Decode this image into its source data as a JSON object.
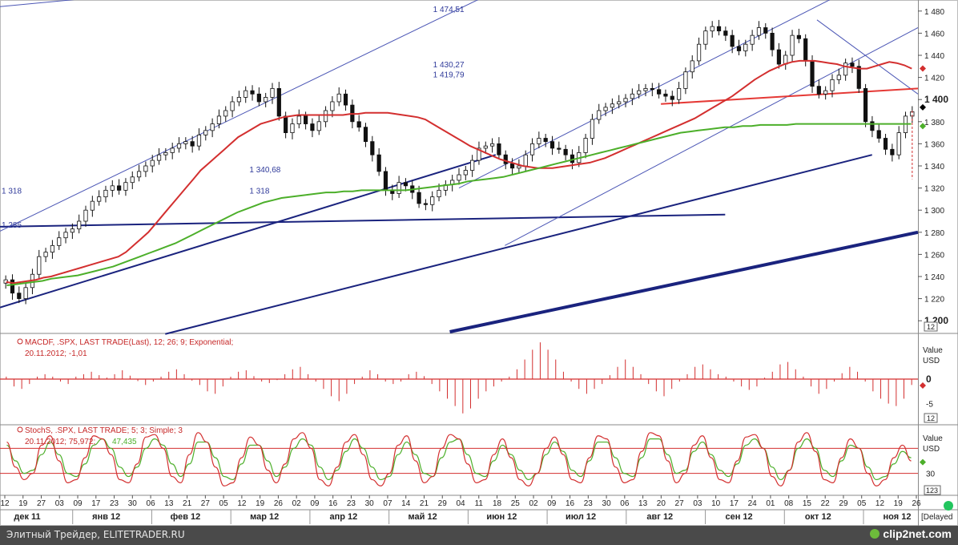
{
  "chart_data": {
    "type": "line",
    "price_panel": {
      "ylim": [
        1190,
        1490
      ],
      "y_ticks": [
        "1 480",
        "1 460",
        "1 440",
        "1 420",
        "1 400",
        "1 380",
        "1 360",
        "1 340",
        "1 320",
        "1 300",
        "1 280",
        "1 260",
        "1 240",
        "1 220",
        "1 200"
      ],
      "bold_ticks": [
        "1 400",
        "1 200"
      ],
      "right_badge": "12",
      "annotations": [
        {
          "text": "1 474,51",
          "x": 47,
          "y": 1482
        },
        {
          "text": "1 430,27",
          "x": 47,
          "y": 1432
        },
        {
          "text": "1 419,79",
          "x": 47,
          "y": 1423
        },
        {
          "text": "1 340,68",
          "x": 27,
          "y": 1337
        },
        {
          "text": "1 318",
          "x": 27,
          "y": 1318
        },
        {
          "text": "1 318",
          "x": 0,
          "y": 1318
        },
        {
          "text": "1 285",
          "x": 0,
          "y": 1287
        }
      ],
      "close": [
        1237,
        1225,
        1220,
        1230,
        1242,
        1258,
        1262,
        1268,
        1275,
        1280,
        1283,
        1290,
        1300,
        1308,
        1312,
        1318,
        1322,
        1318,
        1325,
        1330,
        1335,
        1340,
        1345,
        1350,
        1352,
        1356,
        1360,
        1362,
        1358,
        1368,
        1372,
        1378,
        1385,
        1390,
        1398,
        1402,
        1408,
        1405,
        1398,
        1402,
        1410,
        1385,
        1370,
        1378,
        1385,
        1378,
        1372,
        1380,
        1390,
        1398,
        1405,
        1395,
        1380,
        1375,
        1362,
        1350,
        1335,
        1318,
        1315,
        1325,
        1322,
        1316,
        1306,
        1305,
        1312,
        1318,
        1323,
        1327,
        1332,
        1336,
        1345,
        1356,
        1358,
        1360,
        1350,
        1342,
        1338,
        1340,
        1350,
        1360,
        1365,
        1362,
        1356,
        1355,
        1350,
        1343,
        1352,
        1365,
        1382,
        1390,
        1393,
        1396,
        1398,
        1401,
        1405,
        1408,
        1410,
        1409,
        1405,
        1403,
        1400,
        1410,
        1425,
        1435,
        1450,
        1462,
        1466,
        1462,
        1458,
        1448,
        1444,
        1450,
        1458,
        1465,
        1460,
        1445,
        1432,
        1440,
        1458,
        1455,
        1435,
        1412,
        1405,
        1408,
        1418,
        1422,
        1433,
        1430,
        1410,
        1380,
        1372,
        1365,
        1355,
        1350,
        1370,
        1385,
        1389
      ],
      "ma_red": [
        1235,
        1234,
        1235,
        1236,
        1237,
        1239,
        1240,
        1242,
        1244,
        1246,
        1248,
        1250,
        1252,
        1254,
        1256,
        1258,
        1262,
        1268,
        1274,
        1280,
        1288,
        1296,
        1304,
        1312,
        1320,
        1328,
        1336,
        1342,
        1348,
        1354,
        1360,
        1366,
        1370,
        1374,
        1378,
        1380,
        1382,
        1384,
        1385,
        1386,
        1386,
        1386,
        1386,
        1386,
        1386,
        1386,
        1387,
        1387,
        1388,
        1388,
        1388,
        1388,
        1387,
        1386,
        1385,
        1384,
        1382,
        1378,
        1374,
        1370,
        1366,
        1362,
        1358,
        1355,
        1352,
        1349,
        1346,
        1344,
        1342,
        1340,
        1339,
        1338,
        1338,
        1338,
        1339,
        1340,
        1341,
        1342,
        1343,
        1345,
        1347,
        1350,
        1353,
        1356,
        1359,
        1362,
        1365,
        1368,
        1371,
        1374,
        1377,
        1380,
        1383,
        1387,
        1391,
        1395,
        1399,
        1403,
        1408,
        1413,
        1418,
        1422,
        1426,
        1429,
        1432,
        1434,
        1435,
        1435,
        1435,
        1434,
        1433,
        1432,
        1430,
        1429,
        1428,
        1428,
        1430,
        1432,
        1434,
        1433,
        1431,
        1428
      ],
      "ma_green": [
        1232,
        1233,
        1234,
        1235,
        1236,
        1238,
        1239,
        1240,
        1241,
        1243,
        1245,
        1247,
        1249,
        1252,
        1255,
        1258,
        1261,
        1264,
        1267,
        1270,
        1274,
        1278,
        1282,
        1286,
        1290,
        1294,
        1298,
        1301,
        1304,
        1307,
        1309,
        1311,
        1312,
        1313,
        1314,
        1315,
        1316,
        1316,
        1317,
        1317,
        1318,
        1318,
        1318,
        1318,
        1318,
        1318,
        1319,
        1320,
        1321,
        1322,
        1323,
        1324,
        1326,
        1327,
        1328,
        1329,
        1330,
        1332,
        1334,
        1336,
        1338,
        1340,
        1342,
        1344,
        1346,
        1348,
        1350,
        1352,
        1354,
        1356,
        1358,
        1360,
        1362,
        1364,
        1366,
        1368,
        1370,
        1371,
        1372,
        1373,
        1374,
        1375,
        1375,
        1376,
        1376,
        1377,
        1377,
        1377,
        1377,
        1378,
        1378,
        1378,
        1378,
        1378,
        1378,
        1378,
        1378,
        1378,
        1378,
        1378,
        1378,
        1378,
        1378
      ],
      "trendlines": [
        {
          "x1": 0,
          "y1": 1212,
          "x2": 54,
          "y2": 1350,
          "color": "#1a237e",
          "width": 2
        },
        {
          "x1": 18,
          "y1": 1188,
          "x2": 95,
          "y2": 1350,
          "color": "#1a237e",
          "width": 2
        },
        {
          "x1": 0,
          "y1": 1285,
          "x2": 79,
          "y2": 1296,
          "color": "#1a237e",
          "width": 2
        },
        {
          "x1": 49,
          "y1": 1190,
          "x2": 100,
          "y2": 1280,
          "color": "#1a237e",
          "width": 4
        },
        {
          "x1": 0,
          "y1": 1281,
          "x2": 53,
          "y2": 1494,
          "color": "#4b56b5",
          "width": 1
        },
        {
          "x1": 0,
          "y1": 1484,
          "x2": 14,
          "y2": 1495,
          "color": "#4b56b5",
          "width": 1
        },
        {
          "x1": 50,
          "y1": 1320,
          "x2": 92,
          "y2": 1497,
          "color": "#4b56b5",
          "width": 1
        },
        {
          "x1": 55,
          "y1": 1268,
          "x2": 100,
          "y2": 1465,
          "color": "#4b56b5",
          "width": 1
        },
        {
          "x1": 89,
          "y1": 1472,
          "x2": 100,
          "y2": 1405,
          "color": "#4b56b5",
          "width": 1
        },
        {
          "x1": 72,
          "y1": 1396,
          "x2": 100,
          "y2": 1410,
          "color": "#e53935",
          "width": 2
        }
      ]
    },
    "macd_panel": {
      "label": "MACDF, .SPX, LAST TRADE(Last),  12; 26; 9; Exponential;",
      "date_value": "20.11.2012; -1,01",
      "right_header": [
        "Value",
        "USD"
      ],
      "y_ticks": [
        "0",
        "-5"
      ],
      "zero_tick": "0",
      "right_badge": "12",
      "ylim": [
        -9,
        9
      ],
      "histogram": [
        0.5,
        -1.5,
        -2,
        -1,
        0.5,
        1,
        0.5,
        -0.5,
        -1,
        0.5,
        1,
        1.5,
        0.8,
        0.3,
        1,
        1.8,
        0.7,
        -0.4,
        -1.2,
        -0.5,
        0.5,
        1.5,
        2,
        1,
        -0.3,
        -1.2,
        -2.5,
        -3,
        -1.5,
        0.5,
        1.5,
        1.8,
        0.6,
        -0.5,
        -0.8,
        -0.2,
        1,
        2,
        2.5,
        1,
        -0.5,
        -2,
        -3.5,
        -4.5,
        -3,
        -1,
        0.5,
        1.8,
        1,
        -0.5,
        -1,
        -0.5,
        1,
        1.5,
        0.6,
        -1,
        -2.5,
        -4,
        -5.5,
        -7,
        -6,
        -4,
        -2.5,
        -1.5,
        -0.5,
        0.5,
        2,
        4,
        6,
        7.5,
        6,
        4,
        1.5,
        -0.5,
        -2,
        -3,
        -2,
        -1,
        0.8,
        2.5,
        4,
        2.5,
        1,
        -1,
        -2.5,
        -3.5,
        -2,
        -0.5,
        1,
        2.5,
        3,
        2,
        1,
        0.5,
        -0.5,
        -1.5,
        -2.2,
        -1.5,
        0.3,
        1.5,
        3,
        3.5,
        2,
        0.5,
        -1.5,
        -3,
        -2,
        -0.5,
        1.2,
        2.5,
        1.5,
        -0.5,
        -2.5,
        -4,
        -5,
        -5.5,
        -4,
        -1.2
      ]
    },
    "stoch_panel": {
      "label": "StochS, .SPX, LAST TRADE;  5; 3; Simple; 3",
      "date_value_red": "20.11.2012; 75,972;",
      "date_value_green": "47,435",
      "right_header": [
        "Value",
        "USD"
      ],
      "y_ticks": [
        "30"
      ],
      "upper_level": 70,
      "lower_level": 30,
      "ylim": [
        -5,
        105
      ],
      "bottom_badge": "123",
      "k": [
        80,
        40,
        20,
        30,
        75,
        90,
        50,
        15,
        20,
        55,
        90,
        85,
        60,
        20,
        15,
        45,
        88,
        92,
        70,
        25,
        15,
        60,
        95,
        80,
        40,
        10,
        15,
        55,
        88,
        75,
        35,
        15,
        45,
        85,
        95,
        70,
        20,
        10,
        40,
        80,
        92,
        60,
        20,
        10,
        30,
        75,
        90,
        50,
        15,
        25,
        70,
        92,
        85,
        45,
        15,
        20,
        60,
        85,
        55,
        20,
        10,
        30,
        70,
        88,
        60,
        20,
        15,
        55,
        90,
        85,
        40,
        15,
        20,
        65,
        95,
        90,
        50,
        15,
        30,
        75,
        90,
        55,
        20,
        15,
        50,
        88,
        92,
        70,
        25,
        10,
        35,
        80,
        95,
        65,
        20,
        15,
        55,
        85,
        70,
        30,
        10,
        20,
        55,
        75,
        50
      ],
      "d": [
        75,
        50,
        30,
        35,
        60,
        80,
        60,
        30,
        25,
        45,
        75,
        85,
        70,
        40,
        25,
        40,
        70,
        85,
        75,
        45,
        25,
        45,
        80,
        80,
        55,
        25,
        20,
        45,
        75,
        75,
        50,
        25,
        40,
        70,
        85,
        75,
        40,
        20,
        35,
        65,
        85,
        70,
        40,
        20,
        25,
        60,
        80,
        60,
        30,
        25,
        55,
        80,
        85,
        60,
        30,
        25,
        50,
        75,
        60,
        35,
        20,
        30,
        60,
        80,
        65,
        35,
        25,
        50,
        80,
        80,
        55,
        30,
        25,
        55,
        85,
        85,
        60,
        30,
        35,
        65,
        80,
        60,
        35,
        25,
        45,
        75,
        85,
        70,
        40,
        20,
        35,
        70,
        85,
        70,
        35,
        25,
        50,
        75,
        70,
        40,
        20,
        25,
        45,
        65,
        55
      ]
    },
    "x_axis": {
      "day_ticks": [
        "12",
        "19",
        "27",
        "03",
        "09",
        "17",
        "23",
        "30",
        "06",
        "13",
        "21",
        "27",
        "05",
        "12",
        "19",
        "26",
        "02",
        "09",
        "16",
        "23",
        "30",
        "07",
        "14",
        "21",
        "29",
        "04",
        "11",
        "18",
        "25",
        "02",
        "09",
        "16",
        "23",
        "30",
        "06",
        "13",
        "20",
        "27",
        "03",
        "10",
        "17",
        "24",
        "01",
        "08",
        "15",
        "22",
        "29",
        "05",
        "12",
        "19",
        "26"
      ],
      "month_ticks": [
        "дек 11",
        "янв 12",
        "фев 12",
        "мар 12",
        "апр 12",
        "май 12",
        "июн 12",
        "июл 12",
        "авг 12",
        "сен 12",
        "окт 12",
        "ноя 12"
      ],
      "right_label": "[Delayed"
    }
  },
  "footer": {
    "credit": "Элитный Трейдер, ELITETRADER.RU",
    "brand": "clip2net.com"
  },
  "colors": {
    "candle": "#111111",
    "ma_red": "#d32f2f",
    "ma_green": "#4caf2a",
    "level_red": "#d32f2f",
    "stoch_k": "#d32f2f",
    "stoch_d": "#4caf2a",
    "annotation": "#2f3a9a",
    "grid": "#dddddd"
  }
}
